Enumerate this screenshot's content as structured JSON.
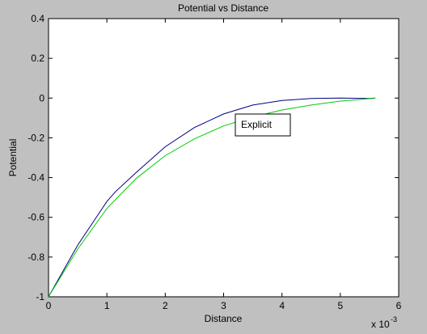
{
  "chart_data": {
    "type": "line",
    "title": "Potential vs Distance",
    "xlabel": "Distance",
    "ylabel": "Potential",
    "x_exponent_label": "x 10",
    "x_exponent_power": "-3",
    "xlim": [
      0,
      6
    ],
    "ylim": [
      -1,
      0.4
    ],
    "xticks": [
      0,
      1,
      2,
      3,
      4,
      5,
      6
    ],
    "yticks": [
      -1,
      -0.8,
      -0.6,
      -0.4,
      -0.2,
      0,
      0.2,
      0.4
    ],
    "xtick_labels": [
      "0",
      "1",
      "2",
      "3",
      "4",
      "5",
      "6"
    ],
    "ytick_labels": [
      "-1",
      "-0.8",
      "-0.6",
      "-0.4",
      "-0.2",
      "0",
      "0.2",
      "0.4"
    ],
    "grid": false,
    "annotation": "Explicit",
    "series": [
      {
        "color": "#000080",
        "x": [
          0,
          0.5,
          1.0,
          1.15,
          1.5,
          2.0,
          2.5,
          3.0,
          3.5,
          4.0,
          4.5,
          5.0,
          5.5,
          5.6
        ],
        "y": [
          -1.0,
          -0.74,
          -0.52,
          -0.47,
          -0.375,
          -0.245,
          -0.148,
          -0.08,
          -0.035,
          -0.012,
          -0.002,
          0.0,
          -0.002,
          0.0
        ]
      },
      {
        "color": "#00cc00",
        "x": [
          0,
          0.5,
          1.0,
          1.5,
          2.0,
          2.5,
          3.0,
          3.5,
          4.0,
          4.5,
          5.0,
          5.5,
          5.6
        ],
        "y": [
          -1.0,
          -0.76,
          -0.555,
          -0.405,
          -0.29,
          -0.205,
          -0.14,
          -0.095,
          -0.06,
          -0.035,
          -0.015,
          -0.003,
          -0.001
        ]
      }
    ]
  }
}
